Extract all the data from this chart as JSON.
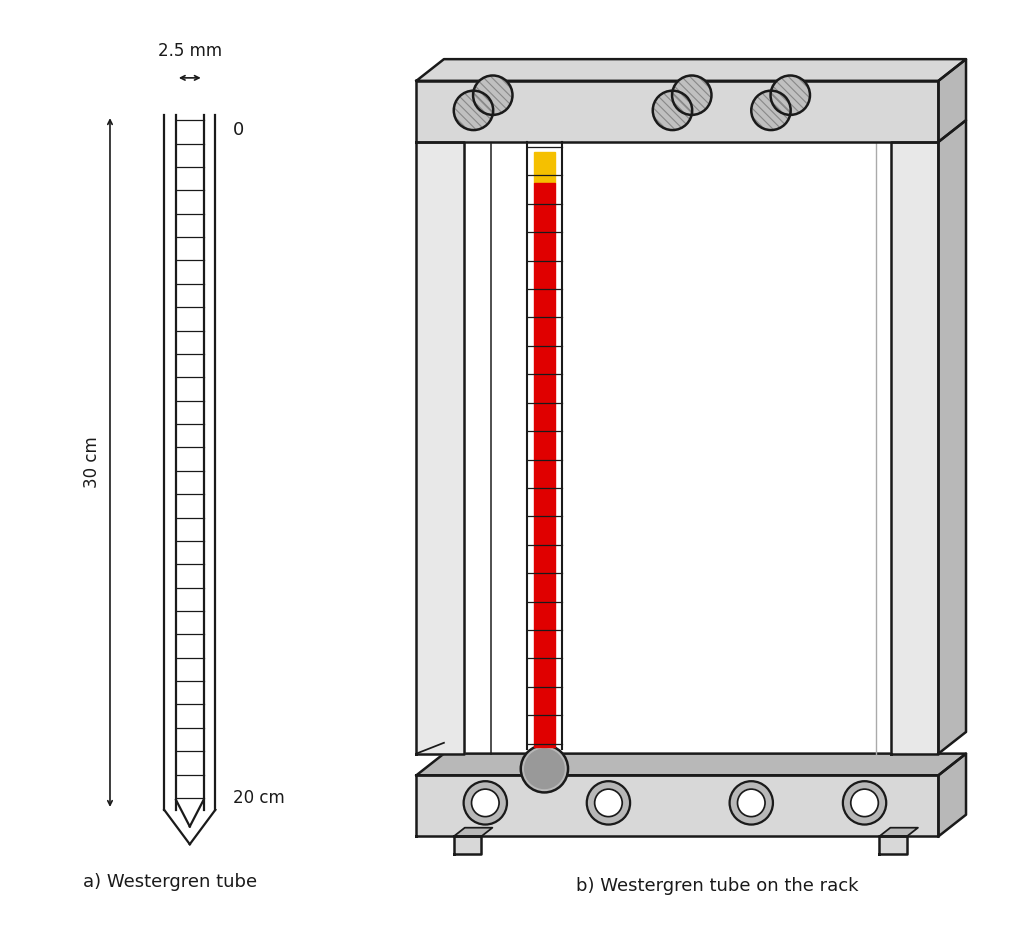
{
  "bg_color": "#ffffff",
  "label_a": "a) Westergren tube",
  "label_b": "b) Westergren tube on the rack",
  "tube_width_label": "2.5 mm",
  "zero_label": "0",
  "length_label_30": "30 cm",
  "length_label_20": "20 cm",
  "line_color": "#1a1a1a",
  "red_color": "#e00000",
  "yellow_color": "#f5c000",
  "light_gray": "#d8d8d8",
  "mid_gray": "#b8b8b8",
  "dark_gray": "#888888",
  "knob_gray": "#c0c0c0",
  "rack_fill": "#e8e8e8"
}
